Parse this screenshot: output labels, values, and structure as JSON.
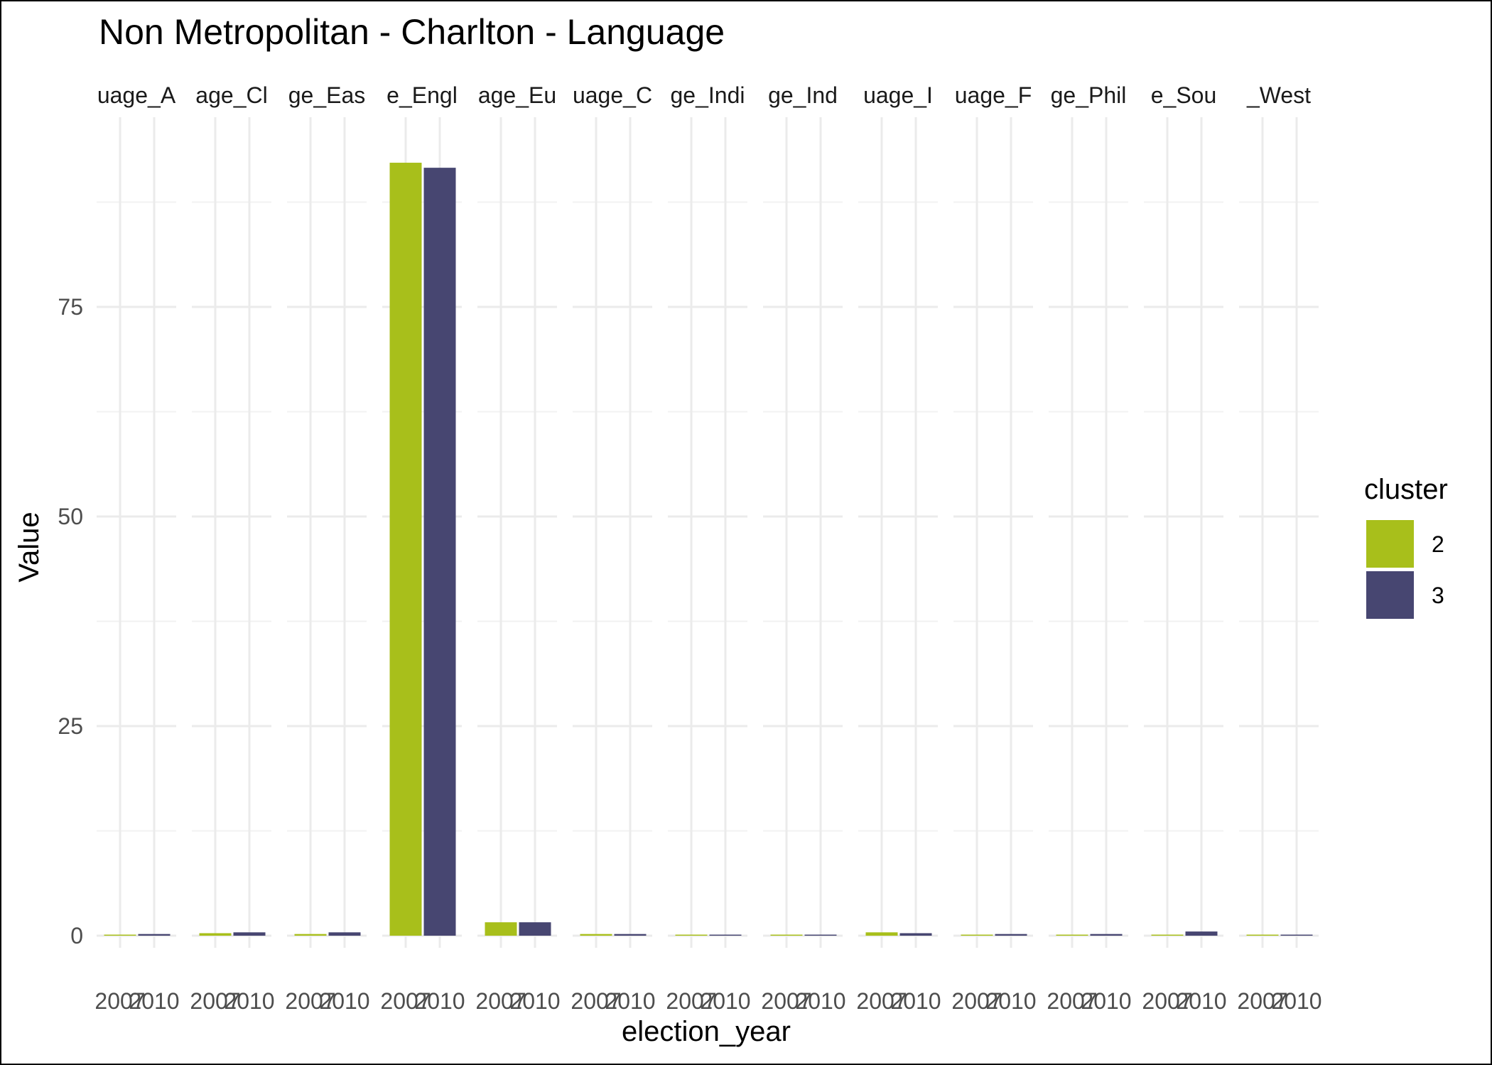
{
  "chart_data": {
    "type": "bar",
    "title": "Non Metropolitan - Charlton - Language",
    "xlabel": "election_year",
    "ylabel": "Value",
    "x": [
      "2007",
      "2010"
    ],
    "facets": [
      {
        "label": "uage_A",
        "values": [
          0.1,
          0.2
        ]
      },
      {
        "label": "age_Cl",
        "values": [
          0.3,
          0.4
        ]
      },
      {
        "label": "ge_Eas",
        "values": [
          0.2,
          0.4
        ]
      },
      {
        "label": "e_Engl",
        "values": [
          92.2,
          91.6
        ]
      },
      {
        "label": "age_Eu",
        "values": [
          1.6,
          1.6
        ]
      },
      {
        "label": "uage_C",
        "values": [
          0.2,
          0.2
        ]
      },
      {
        "label": "ge_Indi",
        "values": [
          0.0,
          0.0
        ]
      },
      {
        "label": "ge_Ind",
        "values": [
          0.0,
          0.1
        ]
      },
      {
        "label": "uage_I",
        "values": [
          0.4,
          0.3
        ]
      },
      {
        "label": "uage_F",
        "values": [
          0.1,
          0.2
        ]
      },
      {
        "label": "ge_Phil",
        "values": [
          0.1,
          0.2
        ]
      },
      {
        "label": "e_Sou",
        "values": [
          0.1,
          0.5
        ]
      },
      {
        "label": "_West",
        "values": [
          0.0,
          0.1
        ]
      }
    ],
    "series": [
      {
        "name": "2",
        "color": "#a8bf1b"
      },
      {
        "name": "3",
        "color": "#474671"
      }
    ],
    "ylim": [
      0,
      95
    ],
    "yticks": [
      0,
      25,
      50,
      75
    ],
    "grid": true,
    "legend_position": "right",
    "legend_title": "cluster"
  }
}
